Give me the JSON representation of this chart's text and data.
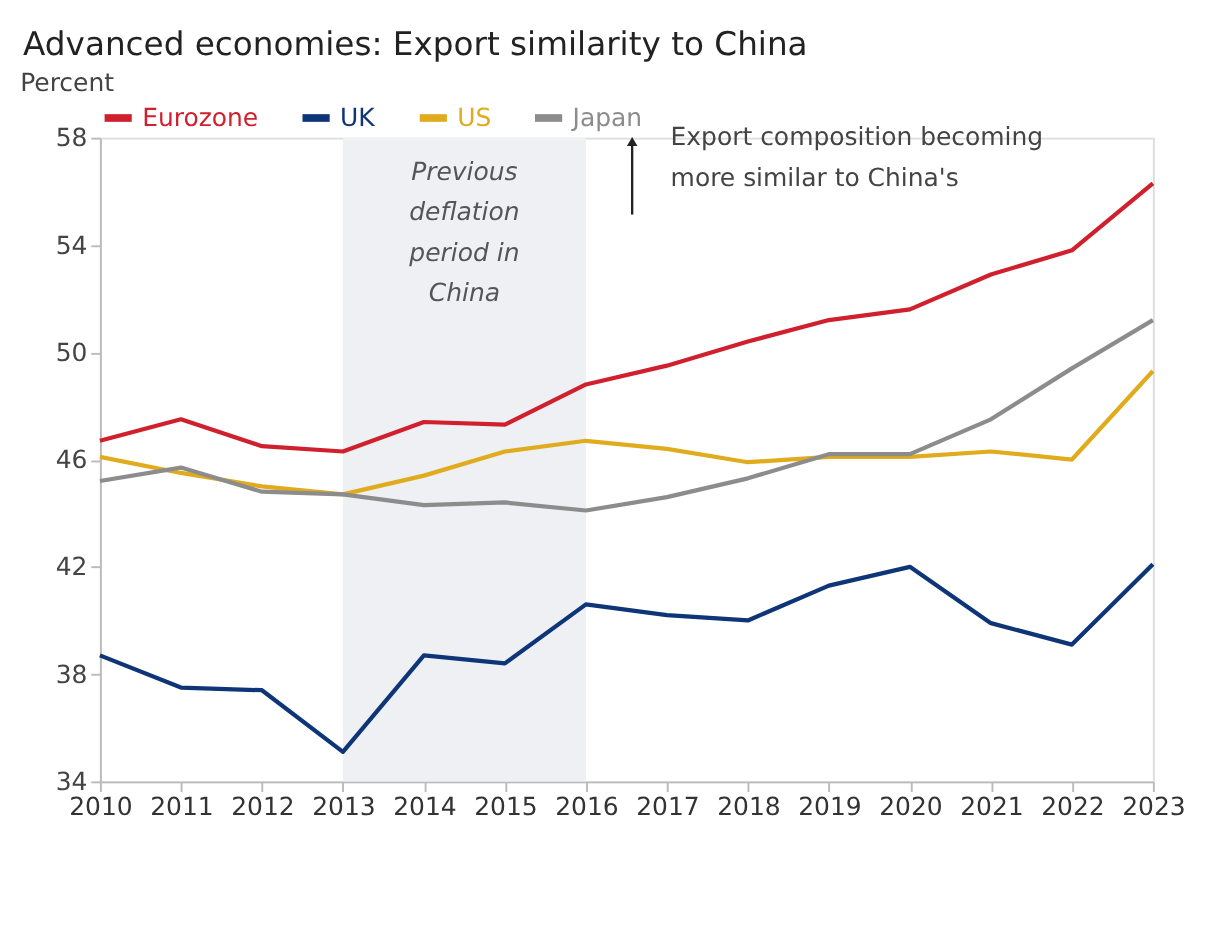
{
  "chart_data": {
    "type": "line",
    "title": "Advanced economies: Export similarity to China",
    "ylabel": "Percent",
    "x": [
      2010,
      2011,
      2012,
      2013,
      2014,
      2015,
      2016,
      2017,
      2018,
      2019,
      2020,
      2021,
      2022,
      2023
    ],
    "series": [
      {
        "name": "Eurozone",
        "color": "#d0202e",
        "values": [
          46.7,
          47.5,
          46.5,
          46.3,
          47.4,
          47.3,
          48.8,
          49.5,
          50.4,
          51.2,
          51.6,
          52.9,
          53.8,
          56.3
        ]
      },
      {
        "name": "UK",
        "color": "#0d3577",
        "values": [
          38.7,
          37.5,
          37.4,
          35.1,
          38.7,
          38.4,
          40.6,
          40.2,
          40.0,
          41.3,
          42.0,
          39.9,
          39.1,
          42.1
        ]
      },
      {
        "name": "US",
        "color": "#e0ac1e",
        "values": [
          46.1,
          45.5,
          45.0,
          44.7,
          45.4,
          46.3,
          46.7,
          46.4,
          45.9,
          46.1,
          46.1,
          46.3,
          46.0,
          49.3
        ]
      },
      {
        "name": "Japan",
        "color": "#8c8c8c",
        "values": [
          45.2,
          45.7,
          44.8,
          44.7,
          44.3,
          44.4,
          44.1,
          44.6,
          45.3,
          46.2,
          46.2,
          47.5,
          49.4,
          51.2
        ]
      }
    ],
    "xlim": [
      2010,
      2023
    ],
    "xticks": [
      2010,
      2011,
      2012,
      2013,
      2014,
      2015,
      2016,
      2017,
      2018,
      2019,
      2020,
      2021,
      2022,
      2023
    ],
    "ylim": [
      34,
      58
    ],
    "yticks": [
      34,
      38,
      42,
      46,
      50,
      54,
      58
    ],
    "bands": [
      {
        "axis": "x",
        "from": 2013,
        "to": 2016,
        "label": "Previous deflation period in China",
        "color": "#eef0f4"
      }
    ],
    "annotations": [
      "Export composition becoming more similar to China's"
    ],
    "grid": false,
    "legend": "top",
    "line_style": "solid",
    "marker": "none"
  }
}
